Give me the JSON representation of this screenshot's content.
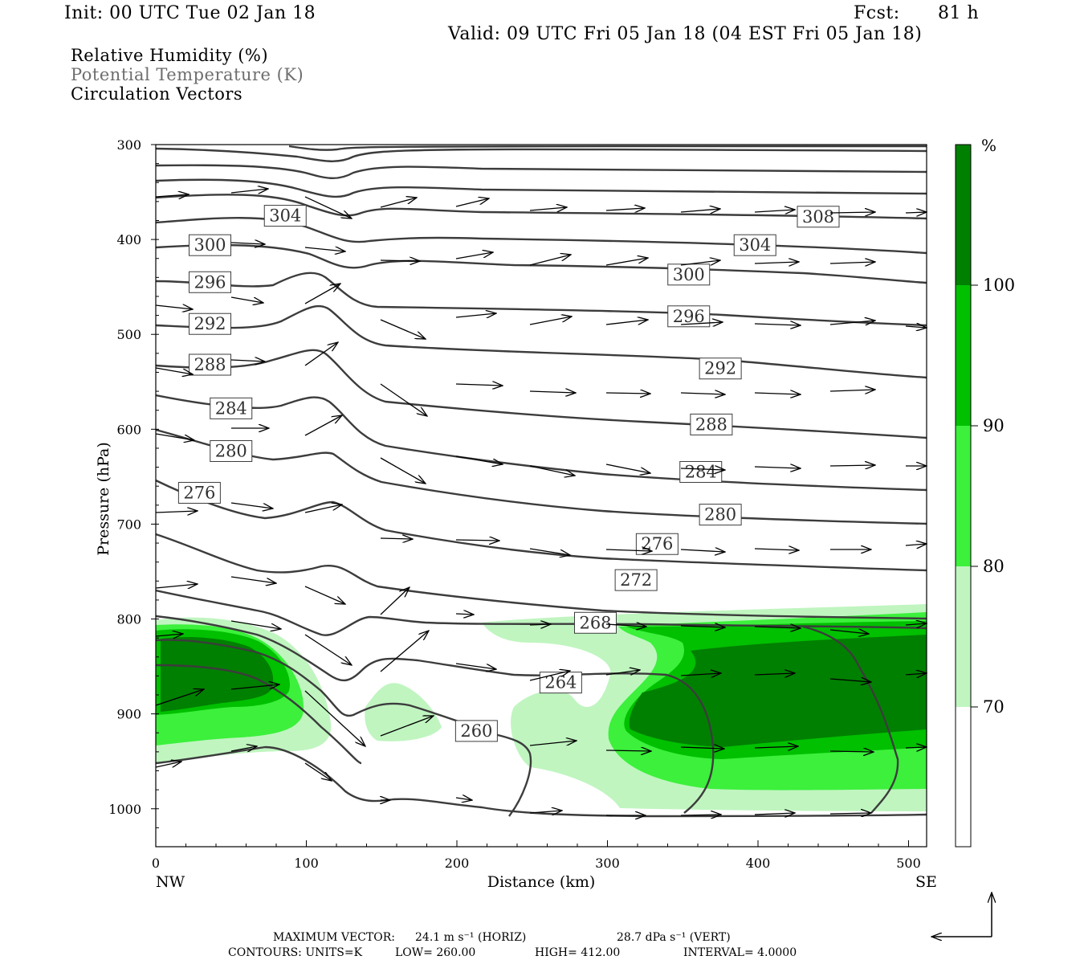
{
  "header": {
    "init": "Init: 00 UTC Tue 02 Jan 18",
    "fcst_label": "Fcst:",
    "fcst_value": "81 h",
    "valid": "Valid: 09 UTC Fri 05 Jan 18 (04 EST Fri 05 Jan 18)"
  },
  "fields_legend": {
    "rh": "Relative Humidity (%)",
    "theta": "Potential Temperature (K)",
    "vectors": "Circulation Vectors"
  },
  "colors": {
    "rh_70_80": "#c0f5c0",
    "rh_80_90": "#3cf03c",
    "rh_90_100": "#00c000",
    "rh_100": "#008000",
    "contour": "#3c3c3c",
    "theta_label_text": "#303030"
  },
  "chart_data": {
    "type": "heatmap",
    "title": "",
    "xlabel": "Distance (km)",
    "ylabel": "Pressure (hPa)",
    "xlim": [
      0,
      512
    ],
    "ylim": [
      1040,
      300
    ],
    "x_ticks": [
      "0",
      "100",
      "200",
      "300",
      "400",
      "500"
    ],
    "y_ticks": [
      "300",
      "400",
      "500",
      "600",
      "700",
      "800",
      "900",
      "1000"
    ],
    "x_endpoints": {
      "left": "NW",
      "right": "SE"
    },
    "colorbar": {
      "unit": "%",
      "levels": [
        "70",
        "80",
        "90",
        "100"
      ]
    },
    "theta_contour_labels": [
      {
        "label": "304",
        "x": 86,
        "p": 375
      },
      {
        "label": "308",
        "x": 440,
        "p": 376
      },
      {
        "label": "300",
        "x": 36,
        "p": 406
      },
      {
        "label": "304",
        "x": 398,
        "p": 406
      },
      {
        "label": "296",
        "x": 36,
        "p": 445
      },
      {
        "label": "300",
        "x": 354,
        "p": 437
      },
      {
        "label": "292",
        "x": 36,
        "p": 489
      },
      {
        "label": "296",
        "x": 354,
        "p": 481
      },
      {
        "label": "288",
        "x": 36,
        "p": 532
      },
      {
        "label": "292",
        "x": 375,
        "p": 536
      },
      {
        "label": "284",
        "x": 50,
        "p": 578
      },
      {
        "label": "288",
        "x": 369,
        "p": 595
      },
      {
        "label": "280",
        "x": 50,
        "p": 623
      },
      {
        "label": "284",
        "x": 362,
        "p": 645
      },
      {
        "label": "276",
        "x": 29,
        "p": 667
      },
      {
        "label": "280",
        "x": 375,
        "p": 690
      },
      {
        "label": "276",
        "x": 333,
        "p": 721
      },
      {
        "label": "272",
        "x": 319,
        "p": 759
      },
      {
        "label": "268",
        "x": 292,
        "p": 804
      },
      {
        "label": "264",
        "x": 269,
        "p": 867
      },
      {
        "label": "260",
        "x": 213,
        "p": 918
      }
    ],
    "footer": {
      "max_vector_label": "MAXIMUM VECTOR:",
      "max_vector_horiz": "24.1 m s⁻¹ (HORIZ)",
      "max_vector_vert": "28.7 dPa s⁻¹ (VERT)",
      "contours_units": "CONTOURS:  UNITS=K",
      "low": "LOW=  260.00",
      "high": "HIGH=  412.00",
      "interval": "INTERVAL=    4.0000"
    }
  }
}
